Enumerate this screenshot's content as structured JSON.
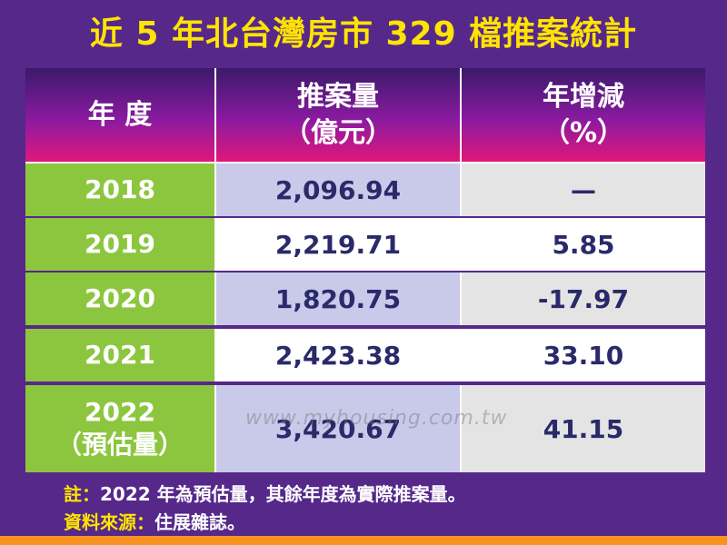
{
  "header": {
    "title": "近 5 年北台灣房市 329 檔推案統計"
  },
  "table": {
    "columns": [
      [
        "年 度"
      ],
      [
        "推案量",
        "（億元）"
      ],
      [
        "年增減",
        "（%）"
      ]
    ],
    "rows": [
      {
        "year": "2018",
        "volume": "2,096.94",
        "change": "—"
      },
      {
        "year": "2019",
        "volume": "2,219.71",
        "change": "5.85"
      },
      {
        "year": "2020",
        "volume": "1,820.75",
        "change": "-17.97"
      },
      {
        "year": "2021",
        "volume": "2,423.38",
        "change": "33.10"
      },
      {
        "year": "2022",
        "year_note": "（預估量）",
        "volume": "3,420.67",
        "change": "41.15"
      }
    ]
  },
  "watermark": "www.myhousing.com.tw",
  "notes": [
    {
      "label": "註：",
      "text": "2022 年為預估量，其餘年度為實際推案量。"
    },
    {
      "label": "資料來源：",
      "text": "住展雜誌。"
    }
  ]
}
